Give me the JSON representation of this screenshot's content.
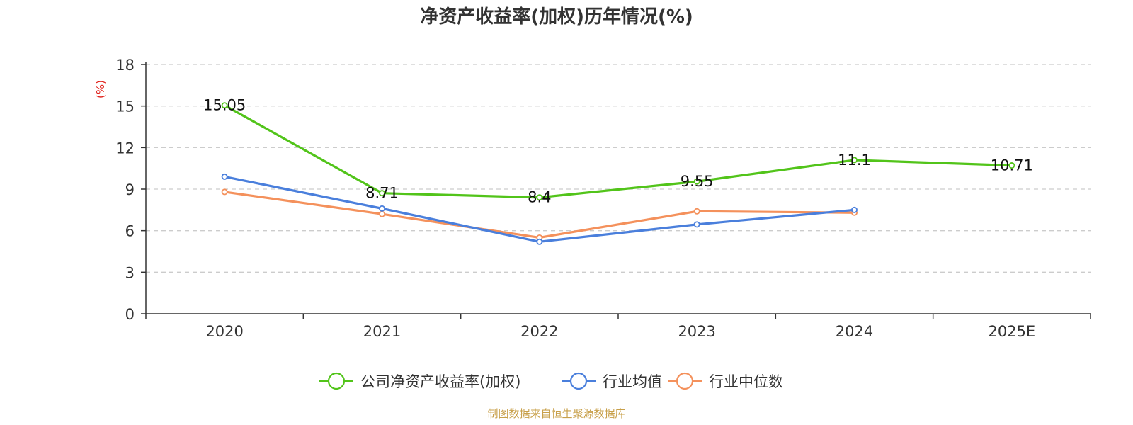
{
  "chart_data": {
    "type": "line",
    "title": "净资产收益率(加权)历年情况(%)",
    "ylabel": "(%)",
    "xlabel": "",
    "categories": [
      "2020",
      "2021",
      "2022",
      "2023",
      "2024",
      "2025E"
    ],
    "ylim": [
      0,
      18
    ],
    "yticks": [
      0,
      3,
      6,
      9,
      12,
      15,
      18
    ],
    "grid": true,
    "legend_position": "bottom",
    "series": [
      {
        "name": "公司净资产收益率(加权)",
        "color": "#52c41a",
        "values": [
          15.05,
          8.71,
          8.4,
          9.55,
          11.1,
          10.71
        ],
        "labels": [
          "15.05",
          "8.71",
          "8.4",
          "9.55",
          "11.1",
          "10.71"
        ]
      },
      {
        "name": "行业均值",
        "color": "#4a7fdc",
        "values": [
          9.9,
          7.6,
          5.2,
          6.45,
          7.5,
          null
        ]
      },
      {
        "name": "行业中位数",
        "color": "#f4915c",
        "values": [
          8.8,
          7.2,
          5.5,
          7.4,
          7.3,
          null
        ]
      }
    ]
  },
  "footer": {
    "source": "制图数据来自恒生聚源数据库",
    "source_color": "#c8a04a"
  },
  "axis_label_color": "#e0201a"
}
